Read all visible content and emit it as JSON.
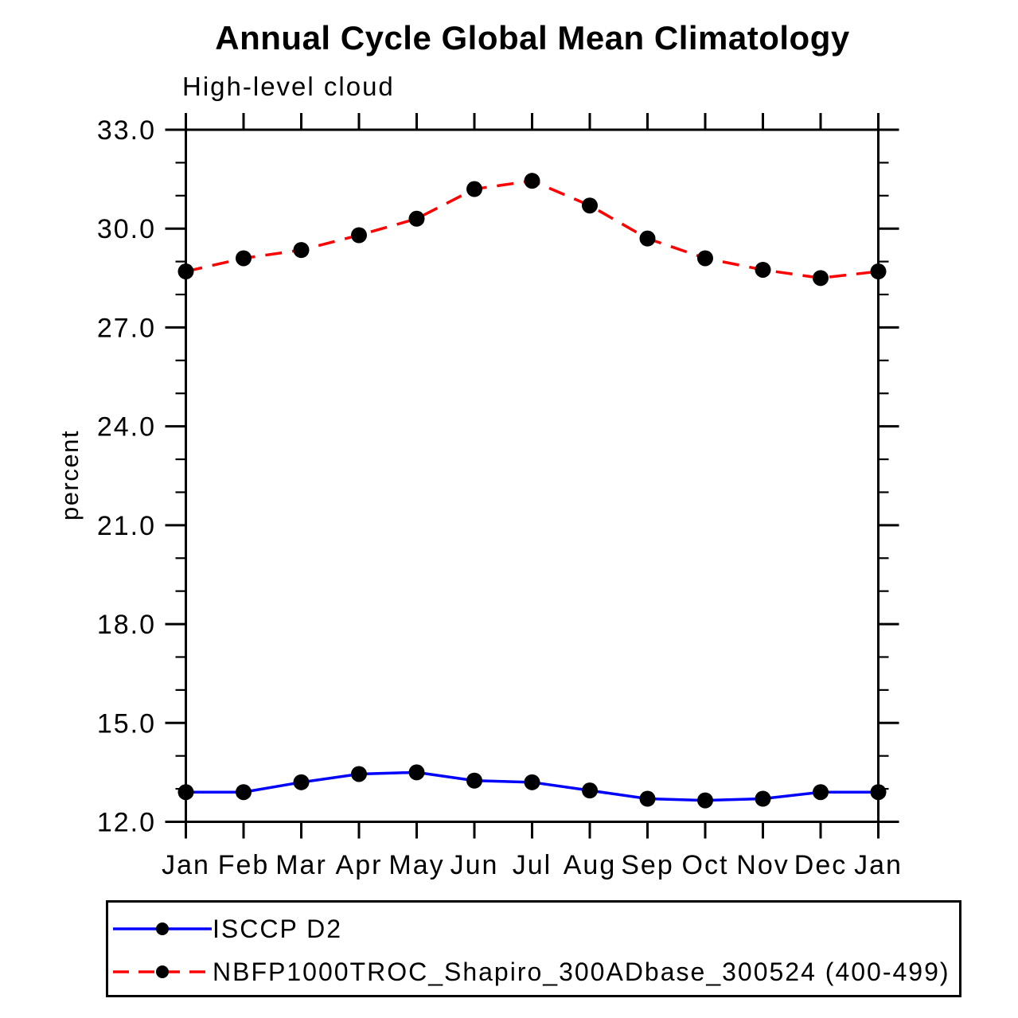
{
  "title": "Annual Cycle Global Mean Climatology",
  "subtitle": "High-level cloud",
  "ylabel": "percent",
  "colors": {
    "series1": "#0000ff",
    "series2": "#ff0000",
    "marker": "#000000",
    "axis": "#000000",
    "background": "#ffffff"
  },
  "legend": {
    "items": [
      {
        "label": "ISCCP D2",
        "color": "#0000ff",
        "line_style": "solid",
        "marker": "black-dot"
      },
      {
        "label": "NBFP1000TROC_Shapiro_300ADbase_300524 (400-499)",
        "color": "#ff0000",
        "line_style": "dashed",
        "marker": "black-dot"
      }
    ]
  },
  "chart_data": {
    "type": "line",
    "title": "Annual Cycle Global Mean Climatology",
    "subtitle": "High-level cloud",
    "xlabel": "",
    "ylabel": "percent",
    "categories": [
      "Jan",
      "Feb",
      "Mar",
      "Apr",
      "May",
      "Jun",
      "Jul",
      "Aug",
      "Sep",
      "Oct",
      "Nov",
      "Dec",
      "Jan"
    ],
    "ylim": [
      12.0,
      33.0
    ],
    "ytick_major": [
      12.0,
      15.0,
      18.0,
      21.0,
      24.0,
      27.0,
      30.0,
      33.0
    ],
    "ytick_minor_step": 1.0,
    "grid": false,
    "legend_position": "bottom",
    "marker": {
      "shape": "circle",
      "color": "#000000"
    },
    "series": [
      {
        "name": "ISCCP D2",
        "color": "#0000ff",
        "line_style": "solid",
        "values": [
          12.9,
          12.9,
          13.2,
          13.45,
          13.5,
          13.25,
          13.2,
          12.95,
          12.7,
          12.65,
          12.7,
          12.9,
          12.9
        ]
      },
      {
        "name": "NBFP1000TROC_Shapiro_300ADbase_300524 (400-499)",
        "color": "#ff0000",
        "line_style": "dashed",
        "values": [
          28.7,
          29.1,
          29.35,
          29.8,
          30.3,
          31.2,
          31.45,
          30.7,
          29.7,
          29.1,
          28.75,
          28.5,
          28.7
        ]
      }
    ]
  }
}
